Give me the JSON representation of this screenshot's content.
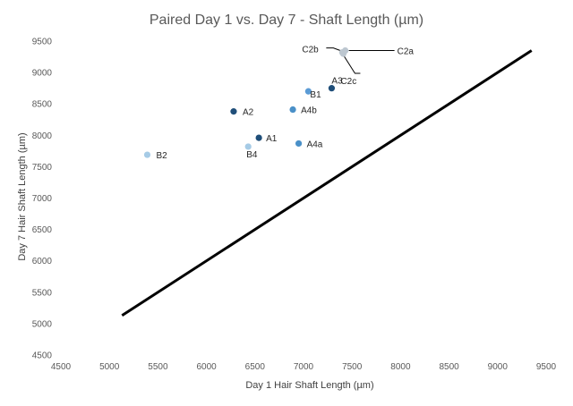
{
  "chart_data": {
    "type": "scatter",
    "title": "Paired Day 1 vs. Day 7 - Shaft Length (µm)",
    "xlabel": "Day 1 Hair Shaft Length (µm)",
    "ylabel": "Day 7 Hair Shaft Length (µm)",
    "xlim": [
      4500,
      9500
    ],
    "ylim": [
      4500,
      9500
    ],
    "xticks": [
      4500,
      5000,
      5500,
      6000,
      6500,
      7000,
      7500,
      8000,
      8500,
      9000,
      9500
    ],
    "yticks": [
      4500,
      5000,
      5500,
      6000,
      6500,
      7000,
      7500,
      8000,
      8500,
      9000,
      9500
    ],
    "grid": false,
    "legend": "none",
    "points": [
      {
        "label": "A1",
        "x": 6540,
        "y": 7960,
        "color": "#1f4e79"
      },
      {
        "label": "A2",
        "x": 6280,
        "y": 8380,
        "color": "#1f4e79"
      },
      {
        "label": "A3",
        "x": 7290,
        "y": 8750,
        "color": "#1f4e79"
      },
      {
        "label": "A4a",
        "x": 6950,
        "y": 7870,
        "color": "#4a90c8"
      },
      {
        "label": "A4b",
        "x": 6890,
        "y": 8410,
        "color": "#4a90c8"
      },
      {
        "label": "B1",
        "x": 7050,
        "y": 8700,
        "color": "#5b9bd5"
      },
      {
        "label": "B2",
        "x": 5390,
        "y": 7690,
        "color": "#a6cbe6"
      },
      {
        "label": "B4",
        "x": 6430,
        "y": 7820,
        "color": "#a6cbe6"
      },
      {
        "label": "C2a",
        "x": 7430,
        "y": 9350,
        "color": "#bdc7d0"
      },
      {
        "label": "C2b",
        "x": 7400,
        "y": 9320,
        "color": "#bdc7d0"
      },
      {
        "label": "C2c",
        "x": 7410,
        "y": 9300,
        "color": "#bdc7d0"
      }
    ],
    "reference_line": {
      "x": [
        5130,
        9350
      ],
      "y": [
        5130,
        9350
      ],
      "color": "#000000"
    }
  }
}
